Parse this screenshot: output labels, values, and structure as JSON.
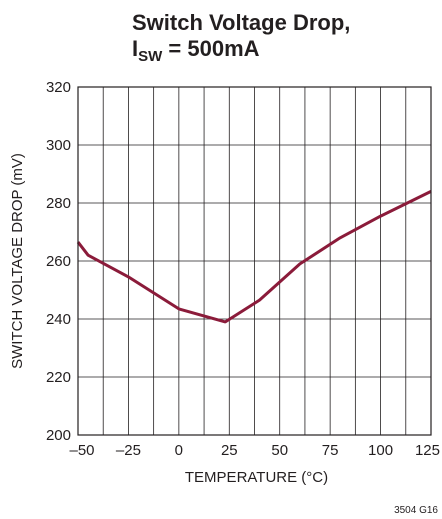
{
  "chart_data": {
    "type": "line",
    "title_line1": "Switch Voltage Drop,",
    "title_line2_main": "I",
    "title_line2_sub": "SW",
    "title_line2_rest": " = 500mA",
    "xlabel": "TEMPERATURE (°C)",
    "ylabel": "SWITCH VOLTAGE DROP (mV)",
    "xlim": [
      -50,
      125
    ],
    "ylim": [
      200,
      320
    ],
    "x_ticks": [
      -50,
      -25,
      0,
      25,
      50,
      75,
      100,
      125
    ],
    "x_tick_labels": [
      "–50",
      "–25",
      "0",
      "25",
      "50",
      "75",
      "100",
      "125"
    ],
    "y_ticks": [
      200,
      220,
      240,
      260,
      280,
      300,
      320
    ],
    "y_tick_labels": [
      "200",
      "220",
      "240",
      "260",
      "280",
      "300",
      "320"
    ],
    "x_minor_step": 12.5,
    "grid": true,
    "series": [
      {
        "color": "#8b1b3a",
        "x": [
          -50,
          -45,
          -25,
          0,
          23,
          40,
          60,
          80,
          100,
          125
        ],
        "y": [
          266.5,
          262,
          254.5,
          243.5,
          239,
          246.5,
          259,
          268,
          275.5,
          284
        ]
      }
    ],
    "figure_code": "3504 G16"
  }
}
